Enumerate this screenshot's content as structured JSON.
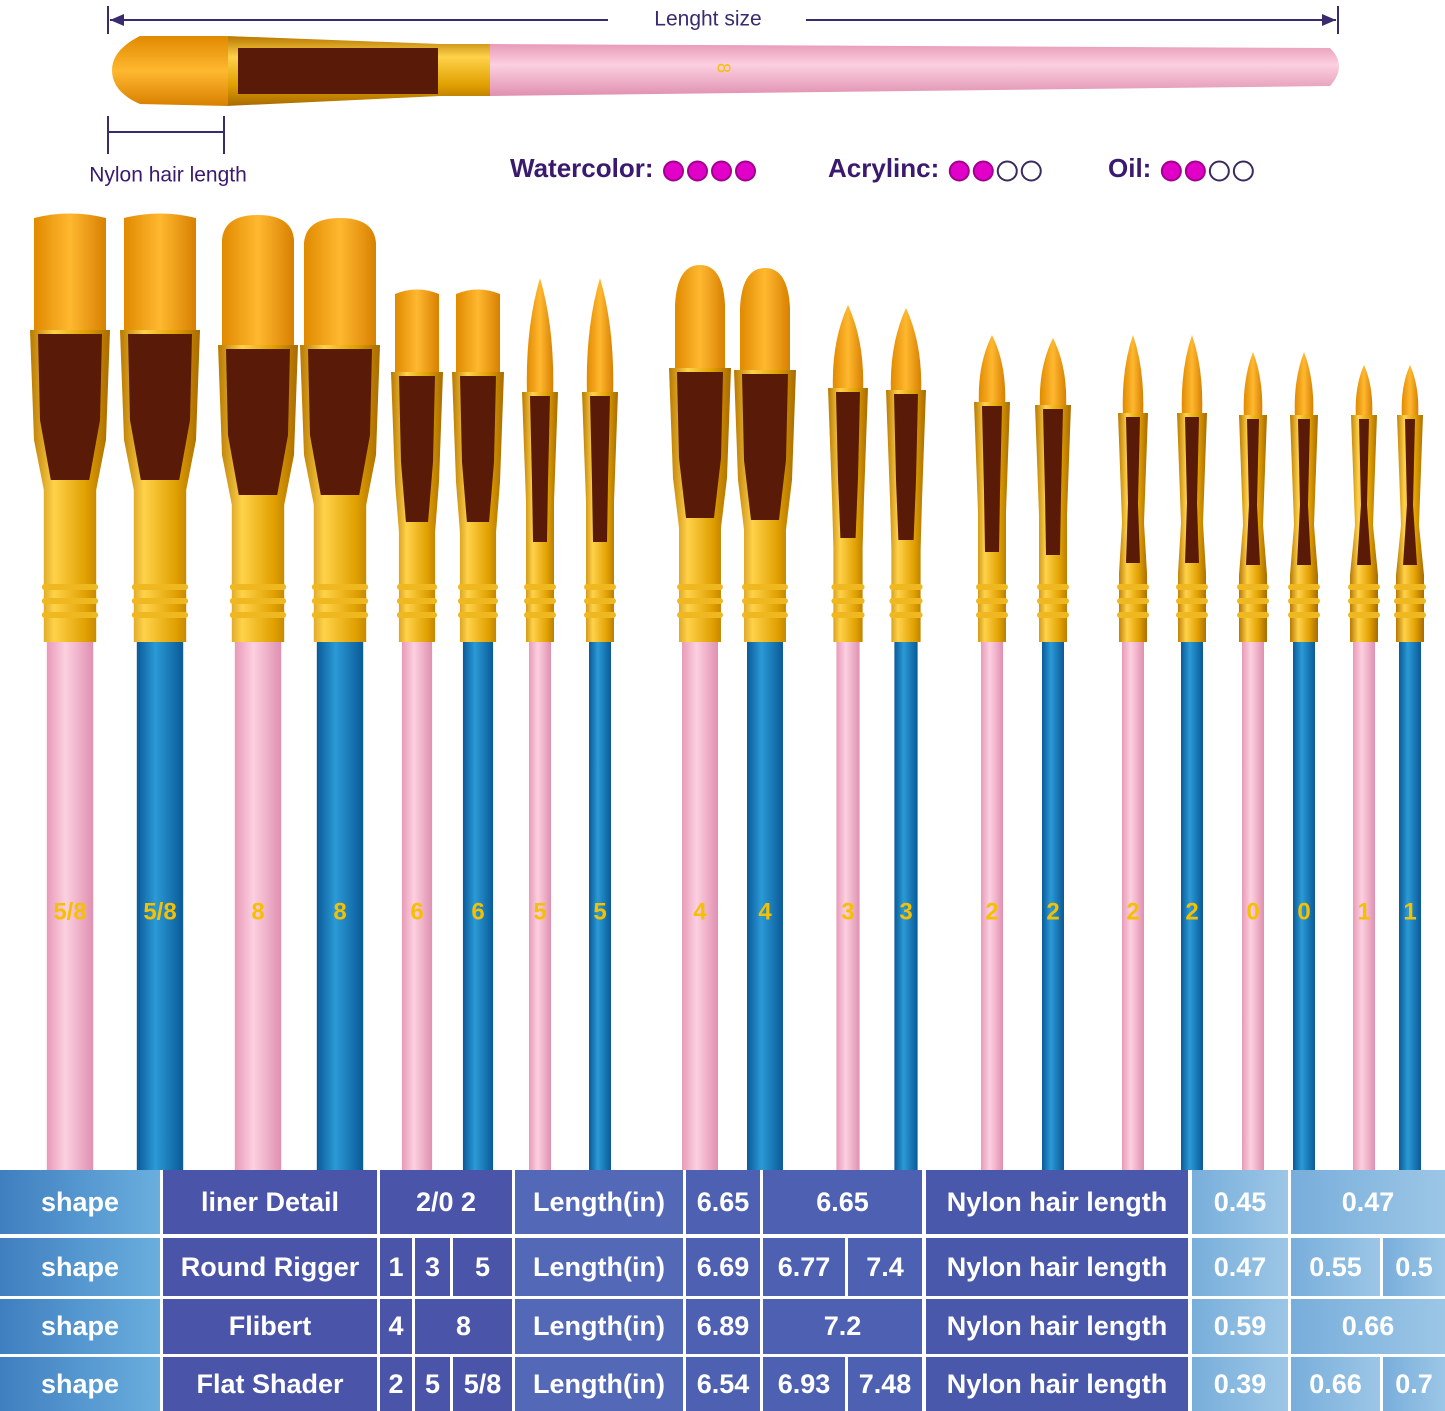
{
  "header": {
    "length_label": "Lenght  size",
    "brush_size": "8",
    "nylon_label": "Nylon hair length",
    "ratings": [
      {
        "label": "Watercolor:",
        "filled": 4,
        "total": 4
      },
      {
        "label": "Acrylinc:",
        "filled": 2,
        "total": 4
      },
      {
        "label": "Oil:",
        "filled": 2,
        "total": 4
      }
    ]
  },
  "brushes": [
    "5/8",
    "5/8",
    "8",
    "8",
    "6",
    "6",
    "5",
    "5",
    "4",
    "4",
    "3",
    "3",
    "2",
    "2",
    "2",
    "2",
    "0",
    "0",
    "1",
    "1"
  ],
  "table": {
    "rows": [
      [
        "shape",
        "liner Detail",
        "2/0 2",
        "Length(in)",
        "6.65",
        "6.65",
        "Nylon hair length",
        "0.45",
        "0.47"
      ],
      [
        "shape",
        "Round Rigger",
        "1",
        "3",
        "5",
        "Length(in)",
        "6.69",
        "6.77",
        "7.4",
        "Nylon hair length",
        "0.47",
        "0.55",
        "0.5"
      ],
      [
        "shape",
        "Flibert",
        "4",
        "8",
        "Length(in)",
        "6.89",
        "7.2",
        "Nylon hair length",
        "0.59",
        "0.66"
      ],
      [
        "shape",
        "Flat Shader",
        "2",
        "5",
        "5/8",
        "Length(in)",
        "6.54",
        "6.93",
        "7.48",
        "Nylon hair length",
        "0.39",
        "0.66",
        "0.7"
      ]
    ]
  }
}
